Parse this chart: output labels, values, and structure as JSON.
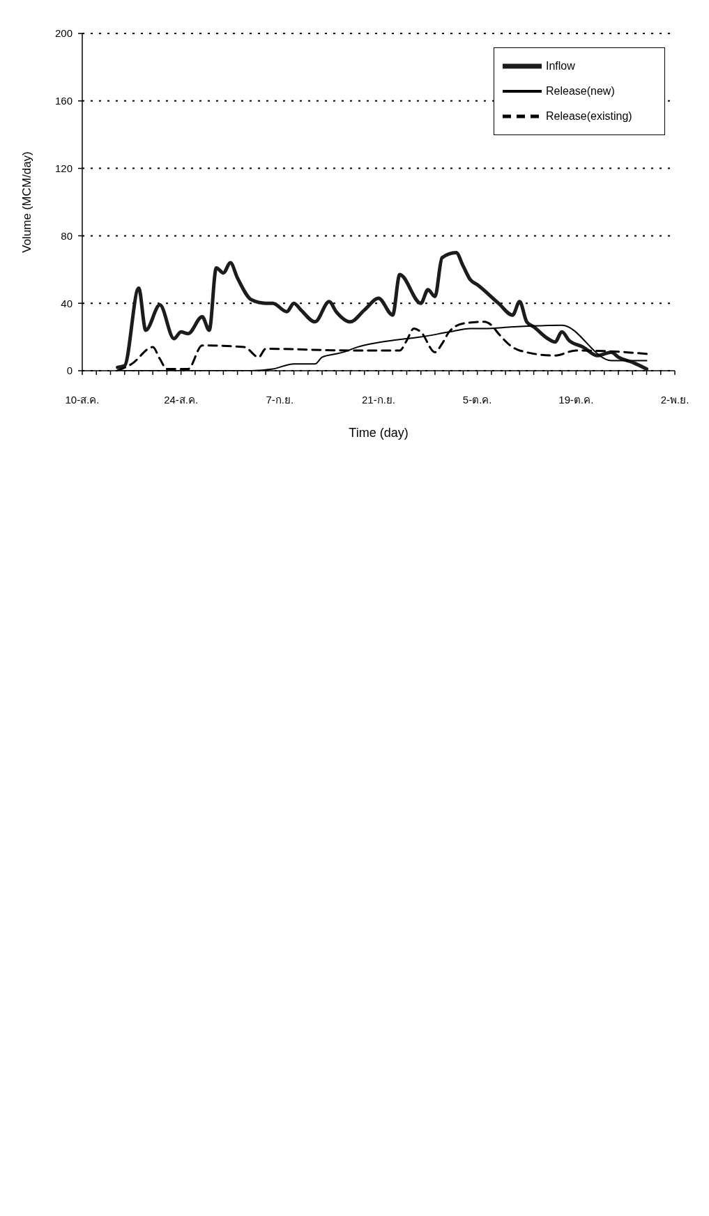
{
  "chart_data": {
    "type": "line",
    "xlabel": "Time (day)",
    "ylabel": "Volume (MCM/day)",
    "xlim": [
      "--08-10",
      "--11-02"
    ],
    "xticks": [
      {
        "value": "--08-10",
        "label": "10-ส.ค."
      },
      {
        "value": "--08-12",
        "label": null
      },
      {
        "value": "--08-14",
        "label": null
      },
      {
        "value": "--08-16",
        "label": null
      },
      {
        "value": "--08-18",
        "label": null
      },
      {
        "value": "--08-20",
        "label": null
      },
      {
        "value": "--08-22",
        "label": null
      },
      {
        "value": "--08-24",
        "label": "24-ส.ค."
      },
      {
        "value": "--08-26",
        "label": null
      },
      {
        "value": "--08-28",
        "label": null
      },
      {
        "value": "--08-30",
        "label": null
      },
      {
        "value": "--09-01",
        "label": null
      },
      {
        "value": "--09-03",
        "label": null
      },
      {
        "value": "--09-05",
        "label": null
      },
      {
        "value": "--09-07",
        "label": "7-ก.ย."
      },
      {
        "value": "--09-09",
        "label": null
      },
      {
        "value": "--09-11",
        "label": null
      },
      {
        "value": "--09-13",
        "label": null
      },
      {
        "value": "--09-15",
        "label": null
      },
      {
        "value": "--09-17",
        "label": null
      },
      {
        "value": "--09-19",
        "label": null
      },
      {
        "value": "--09-21",
        "label": "21-ก.ย."
      },
      {
        "value": "--09-23",
        "label": null
      },
      {
        "value": "--09-25",
        "label": null
      },
      {
        "value": "--09-27",
        "label": null
      },
      {
        "value": "--09-29",
        "label": null
      },
      {
        "value": "--10-01",
        "label": null
      },
      {
        "value": "--10-03",
        "label": null
      },
      {
        "value": "--10-05",
        "label": "5-ต.ค."
      },
      {
        "value": "--10-07",
        "label": null
      },
      {
        "value": "--10-09",
        "label": null
      },
      {
        "value": "--10-11",
        "label": null
      },
      {
        "value": "--10-13",
        "label": null
      },
      {
        "value": "--10-15",
        "label": null
      },
      {
        "value": "--10-17",
        "label": null
      },
      {
        "value": "--10-19",
        "label": "19-ต.ค."
      },
      {
        "value": "--10-21",
        "label": null
      },
      {
        "value": "--10-23",
        "label": null
      },
      {
        "value": "--10-25",
        "label": null
      },
      {
        "value": "--10-27",
        "label": null
      },
      {
        "value": "--10-29",
        "label": null
      },
      {
        "value": "--10-31",
        "label": null
      },
      {
        "value": "--11-02",
        "label": "2-พ.ย."
      }
    ],
    "ylim": [
      0,
      200
    ],
    "yticks": [
      0,
      40,
      80,
      120,
      160,
      200
    ],
    "grid": "y",
    "legend": "top right",
    "series": [
      {
        "name": "Inflow",
        "color": "#1c1c1c",
        "line_style": "solid",
        "x": [
          "--08-15",
          "--08-16",
          "--08-18",
          "--08-19",
          "--08-21",
          "--08-23",
          "--08-24",
          "--08-25",
          "--08-27",
          "--08-28",
          "--08-29",
          "--08-30",
          "--08-31",
          "--09-01",
          "--09-03",
          "--09-05",
          "--09-06",
          "--09-08",
          "--09-09",
          "--09-10",
          "--09-12",
          "--09-14",
          "--09-15",
          "--09-17",
          "--09-19",
          "--09-21",
          "--09-23",
          "--09-24",
          "--09-27",
          "--09-28",
          "--09-29",
          "--09-30",
          "--10-02",
          "--10-03",
          "--10-04",
          "--10-05",
          "--10-08",
          "--10-10",
          "--10-11",
          "--10-12",
          "--10-13",
          "--10-15",
          "--10-16",
          "--10-17",
          "--10-18",
          "--10-20",
          "--10-22",
          "--10-24",
          "--10-25",
          "--10-27",
          "--10-29"
        ],
        "values": [
          2,
          3,
          49,
          24,
          39,
          19,
          23,
          22,
          32,
          24,
          61,
          58,
          64,
          55,
          42,
          40,
          40,
          35,
          40,
          36,
          29,
          41,
          35,
          29,
          36,
          43,
          33,
          57,
          40,
          48,
          44,
          67,
          70,
          62,
          54,
          51,
          40,
          33,
          41,
          29,
          26,
          19,
          17,
          23,
          18,
          14,
          9,
          11,
          8,
          5,
          1
        ]
      },
      {
        "name": "Release(new)",
        "color": "#000000",
        "line_style": "solid",
        "x": [
          "--08-15",
          "--09-03",
          "--09-06",
          "--09-09",
          "--09-12",
          "--09-13",
          "--09-15",
          "--09-16",
          "--09-18",
          "--09-20",
          "--09-23",
          "--09-25",
          "--09-27",
          "--10-01",
          "--10-04",
          "--10-06",
          "--10-10",
          "--10-17",
          "--10-24",
          "--10-29"
        ],
        "values": [
          0,
          0,
          1,
          4,
          4,
          8,
          10,
          11,
          14,
          16,
          18,
          19,
          20,
          23,
          25,
          25,
          26,
          27,
          6,
          6
        ]
      },
      {
        "name": "Release(existing)",
        "color": "#000000",
        "line_style": "dashed",
        "x": [
          "--08-15",
          "--08-17",
          "--08-20",
          "--08-21",
          "--08-22",
          "--08-25",
          "--08-27",
          "--09-02",
          "--09-04",
          "--09-05",
          "--09-17",
          "--09-24",
          "--09-25",
          "--09-26",
          "--09-27",
          "--09-29",
          "--09-30",
          "--10-01",
          "--10-03",
          "--10-06",
          "--10-07",
          "--10-08",
          "--10-10",
          "--10-11",
          "--10-16",
          "--10-19",
          "--10-26",
          "--10-29"
        ],
        "values": [
          0,
          4,
          14,
          7,
          1,
          1,
          15,
          14,
          8,
          13,
          12,
          12,
          18,
          25,
          23,
          11,
          16,
          23,
          28,
          29,
          27,
          22,
          14,
          12,
          9,
          12,
          11,
          10
        ]
      }
    ]
  }
}
